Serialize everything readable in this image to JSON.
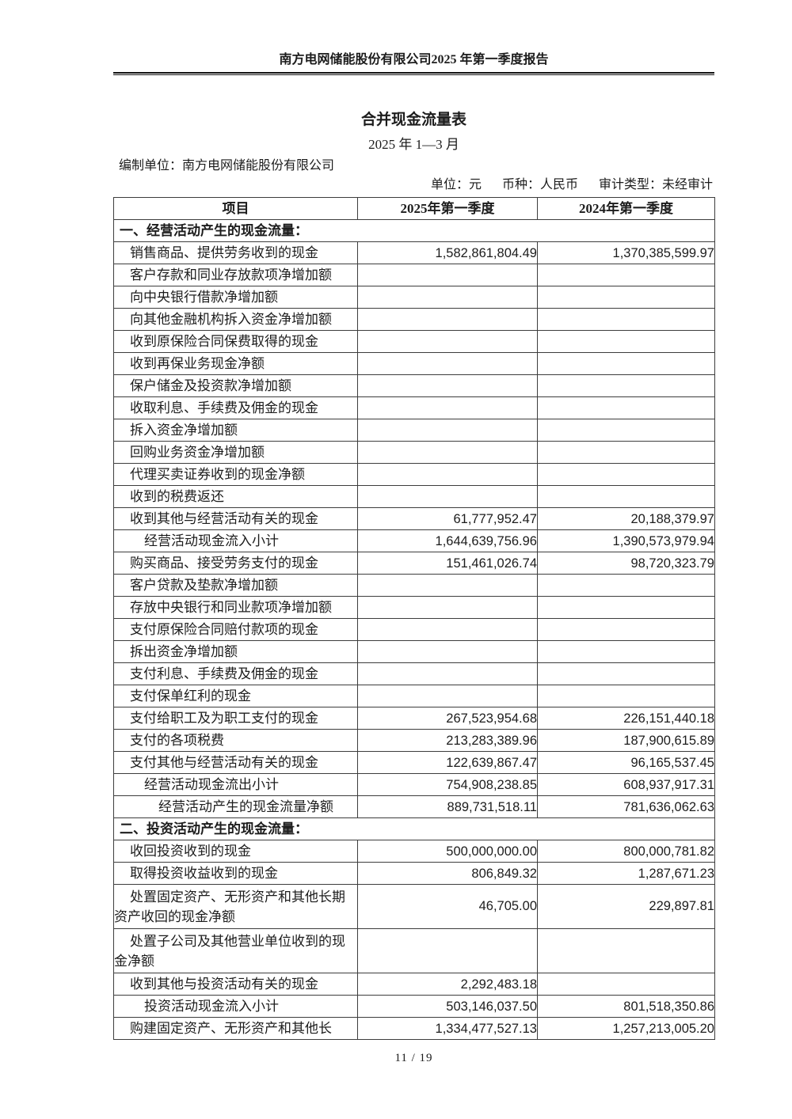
{
  "page_header": {
    "title": "南方电网储能股份有限公司2025 年第一季度报告"
  },
  "document": {
    "title": "合并现金流量表",
    "period": "2025 年 1—3 月",
    "prepared_by": "编制单位：南方电网储能股份有限公司",
    "unit": "单位：元",
    "currency": "币种：人民币",
    "audit_type": "审计类型：未经审计"
  },
  "table": {
    "columns": [
      "项目",
      "2025年第一季度",
      "2024年第一季度"
    ],
    "rows": [
      {
        "type": "section",
        "label": "一、经营活动产生的现金流量："
      },
      {
        "type": "item",
        "label": "销售商品、提供劳务收到的现金",
        "v2025": "1,582,861,804.49",
        "v2024": "1,370,385,599.97"
      },
      {
        "type": "item",
        "label": "客户存款和同业存放款项净增加额",
        "v2025": "",
        "v2024": ""
      },
      {
        "type": "item",
        "label": "向中央银行借款净增加额",
        "v2025": "",
        "v2024": ""
      },
      {
        "type": "item",
        "label": "向其他金融机构拆入资金净增加额",
        "v2025": "",
        "v2024": ""
      },
      {
        "type": "item",
        "label": "收到原保险合同保费取得的现金",
        "v2025": "",
        "v2024": ""
      },
      {
        "type": "item",
        "label": "收到再保业务现金净额",
        "v2025": "",
        "v2024": ""
      },
      {
        "type": "item",
        "label": "保户储金及投资款净增加额",
        "v2025": "",
        "v2024": ""
      },
      {
        "type": "item",
        "label": "收取利息、手续费及佣金的现金",
        "v2025": "",
        "v2024": ""
      },
      {
        "type": "item",
        "label": "拆入资金净增加额",
        "v2025": "",
        "v2024": ""
      },
      {
        "type": "item",
        "label": "回购业务资金净增加额",
        "v2025": "",
        "v2024": ""
      },
      {
        "type": "item",
        "label": "代理买卖证券收到的现金净额",
        "v2025": "",
        "v2024": ""
      },
      {
        "type": "item",
        "label": "收到的税费返还",
        "v2025": "",
        "v2024": ""
      },
      {
        "type": "item",
        "label": "收到其他与经营活动有关的现金",
        "v2025": "61,777,952.47",
        "v2024": "20,188,379.97"
      },
      {
        "type": "subtotal",
        "label": "经营活动现金流入小计",
        "v2025": "1,644,639,756.96",
        "v2024": "1,390,573,979.94"
      },
      {
        "type": "item",
        "label": "购买商品、接受劳务支付的现金",
        "v2025": "151,461,026.74",
        "v2024": "98,720,323.79"
      },
      {
        "type": "item",
        "label": "客户贷款及垫款净增加额",
        "v2025": "",
        "v2024": ""
      },
      {
        "type": "item",
        "label": "存放中央银行和同业款项净增加额",
        "v2025": "",
        "v2024": ""
      },
      {
        "type": "item",
        "label": "支付原保险合同赔付款项的现金",
        "v2025": "",
        "v2024": ""
      },
      {
        "type": "item",
        "label": "拆出资金净增加额",
        "v2025": "",
        "v2024": ""
      },
      {
        "type": "item",
        "label": "支付利息、手续费及佣金的现金",
        "v2025": "",
        "v2024": ""
      },
      {
        "type": "item",
        "label": "支付保单红利的现金",
        "v2025": "",
        "v2024": ""
      },
      {
        "type": "item",
        "label": "支付给职工及为职工支付的现金",
        "v2025": "267,523,954.68",
        "v2024": "226,151,440.18"
      },
      {
        "type": "item",
        "label": "支付的各项税费",
        "v2025": "213,283,389.96",
        "v2024": "187,900,615.89"
      },
      {
        "type": "item",
        "label": "支付其他与经营活动有关的现金",
        "v2025": "122,639,867.47",
        "v2024": "96,165,537.45"
      },
      {
        "type": "subtotal",
        "label": "经营活动现金流出小计",
        "v2025": "754,908,238.85",
        "v2024": "608,937,917.31"
      },
      {
        "type": "net",
        "label": "经营活动产生的现金流量净额",
        "v2025": "889,731,518.11",
        "v2024": "781,636,062.63"
      },
      {
        "type": "section",
        "label": "二、投资活动产生的现金流量："
      },
      {
        "type": "item",
        "label": "收回投资收到的现金",
        "v2025": "500,000,000.00",
        "v2024": "800,000,781.82"
      },
      {
        "type": "item",
        "label": "取得投资收益收到的现金",
        "v2025": "806,849.32",
        "v2024": "1,287,671.23"
      },
      {
        "type": "item",
        "label": "处置固定资产、无形资产和其他长期资产收回的现金净额",
        "v2025": "46,705.00",
        "v2024": "229,897.81",
        "wrap": true
      },
      {
        "type": "item",
        "label": "处置子公司及其他营业单位收到的现金净额",
        "v2025": "",
        "v2024": "",
        "wrap": true
      },
      {
        "type": "item",
        "label": "收到其他与投资活动有关的现金",
        "v2025": "2,292,483.18",
        "v2024": ""
      },
      {
        "type": "subtotal",
        "label": "投资活动现金流入小计",
        "v2025": "503,146,037.50",
        "v2024": "801,518,350.86"
      },
      {
        "type": "item",
        "label": "购建固定资产、无形资产和其他长",
        "v2025": "1,334,477,527.13",
        "v2024": "1,257,213,005.20"
      }
    ]
  },
  "footer": {
    "page_label": "11 / 19"
  }
}
